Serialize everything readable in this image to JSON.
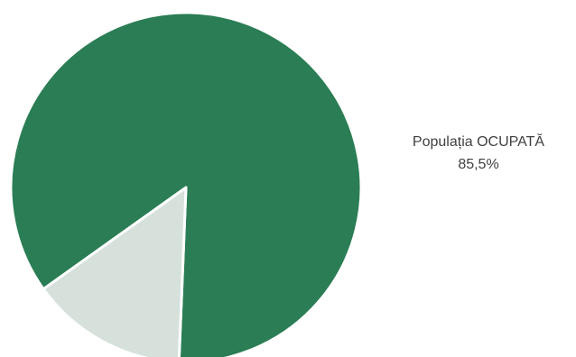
{
  "chart_data": {
    "type": "pie",
    "categories": [
      "Populația OCUPATĂ",
      ""
    ],
    "values": [
      85.5,
      14.5
    ],
    "unit": "%",
    "colors": [
      "#2a7d54",
      "#d6e1dc"
    ],
    "data_labels": [
      {
        "name": "Populația OCUPATĂ",
        "value": "85,5%"
      }
    ],
    "legend": "none"
  }
}
